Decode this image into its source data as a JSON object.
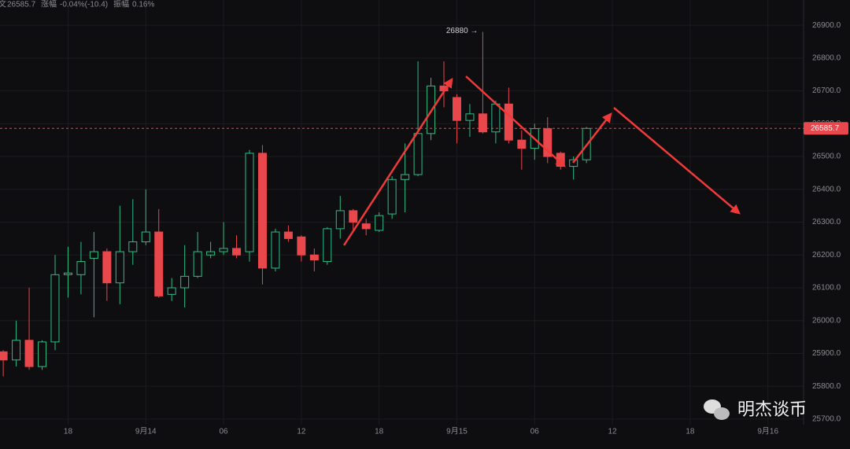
{
  "header": {
    "close_label": "文",
    "close": "26585.7",
    "change_label": "涨幅",
    "change": "-0.04%(-10.4)",
    "amplitude_label": "振幅",
    "amplitude": "0.16%"
  },
  "watermark": "明杰谈币",
  "chart_data": {
    "type": "candlestick",
    "up_color": "#2ebd85",
    "down_color": "#e8474c",
    "x": [
      -11,
      -10,
      -9,
      -8,
      -7,
      -6,
      -5,
      -4,
      -3,
      -2,
      -1,
      0,
      1,
      2,
      3,
      4,
      5,
      6,
      7,
      8,
      9,
      10,
      11,
      12,
      13,
      14,
      15,
      16,
      17,
      18,
      19,
      20,
      21,
      22,
      23,
      24,
      25,
      26,
      27,
      28,
      29,
      30,
      31,
      32,
      33,
      34
    ],
    "open": [
      25905,
      25880,
      25940,
      25860,
      25935,
      26140,
      26140,
      26190,
      26210,
      26115,
      26210,
      26240,
      26270,
      26080,
      26100,
      26135,
      26200,
      26210,
      26220,
      26210,
      26510,
      26160,
      26270,
      26255,
      26200,
      26180,
      26280,
      26335,
      26295,
      26275,
      26325,
      26430,
      26445,
      26570,
      26715,
      26680,
      26610,
      26630,
      26575,
      26660,
      26550,
      26525,
      26585,
      26510,
      26470,
      26490
    ],
    "high": [
      25910,
      26000,
      26100,
      25940,
      26200,
      26225,
      26240,
      26270,
      26220,
      26350,
      26370,
      26400,
      26340,
      26130,
      26230,
      26270,
      26240,
      26300,
      26260,
      26520,
      26535,
      26280,
      26290,
      26260,
      26220,
      26285,
      26380,
      26340,
      26310,
      26330,
      26440,
      26540,
      26790,
      26740,
      26790,
      26690,
      26660,
      26880,
      26670,
      26710,
      26580,
      26600,
      26620,
      26515,
      26500,
      26590
    ],
    "low": [
      25830,
      25860,
      25850,
      25850,
      25910,
      26070,
      26080,
      26010,
      26060,
      26050,
      26170,
      26230,
      26070,
      26060,
      26040,
      26130,
      26190,
      26200,
      26190,
      26180,
      26110,
      26150,
      26240,
      26180,
      26150,
      26170,
      26250,
      26270,
      26260,
      26270,
      26310,
      26330,
      26440,
      26550,
      26650,
      26540,
      26560,
      26570,
      26540,
      26540,
      26460,
      26490,
      26480,
      26460,
      26430,
      26480
    ],
    "close": [
      25880,
      25940,
      25860,
      25935,
      26140,
      26145,
      26180,
      26210,
      26115,
      26210,
      26240,
      26270,
      26075,
      26100,
      26135,
      26210,
      26210,
      26220,
      26200,
      26510,
      26160,
      26270,
      26250,
      26200,
      26185,
      26280,
      26335,
      26300,
      26280,
      26320,
      26430,
      26445,
      26570,
      26715,
      26700,
      26610,
      26630,
      26575,
      26660,
      26550,
      26525,
      26585,
      26500,
      26470,
      26490,
      26585.7
    ],
    "last_price": 26585.7,
    "annotations": [
      {
        "value": 26880,
        "x": 26,
        "text": "26880 →"
      }
    ],
    "xlim": [
      -11.25,
      50.75
    ],
    "xticks": [
      {
        "value": -6,
        "label": "18"
      },
      {
        "value": 0,
        "label": "9月14"
      },
      {
        "value": 6,
        "label": "06"
      },
      {
        "value": 12,
        "label": "12"
      },
      {
        "value": 18,
        "label": "18"
      },
      {
        "value": 24,
        "label": "9月15"
      },
      {
        "value": 30,
        "label": "06"
      },
      {
        "value": 36,
        "label": "12"
      },
      {
        "value": 42,
        "label": "18"
      },
      {
        "value": 48,
        "label": "9月16"
      }
    ],
    "ylim": [
      25683,
      26977
    ],
    "yticks": [
      {
        "value": 25700,
        "label": "25700.0"
      },
      {
        "value": 25800,
        "label": "25800.0"
      },
      {
        "value": 25900,
        "label": "25900.0"
      },
      {
        "value": 26000,
        "label": "26000.0"
      },
      {
        "value": 26100,
        "label": "26100.0"
      },
      {
        "value": 26200,
        "label": "26200.0"
      },
      {
        "value": 26300,
        "label": "26300.0"
      },
      {
        "value": 26400,
        "label": "26400.0"
      },
      {
        "value": 26500,
        "label": "26500.0"
      },
      {
        "value": 26600,
        "label": "26600.0"
      },
      {
        "value": 26700,
        "label": "26700.0"
      },
      {
        "value": 26800,
        "label": "26800.0"
      },
      {
        "value": 26900,
        "label": "26900.0"
      }
    ],
    "grid": true
  }
}
